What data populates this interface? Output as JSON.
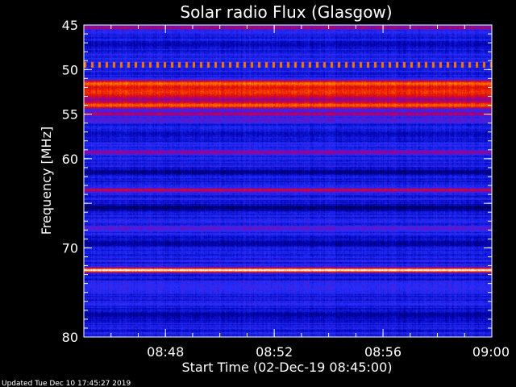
{
  "chart_data": {
    "type": "heatmap",
    "title": "Solar radio Flux (Glasgow)",
    "xlabel": "Start Time (02-Dec-19 08:45:00)",
    "ylabel": "Frequency [MHz]",
    "xlim": [
      "08:45",
      "09:00"
    ],
    "ylim": [
      45,
      80
    ],
    "x_ticks": [
      "08:48",
      "08:52",
      "08:56",
      "09:00"
    ],
    "y_ticks": [
      45,
      50,
      55,
      60,
      65,
      70,
      80
    ],
    "y_tick_labels": [
      "45",
      "50",
      "55",
      "60",
      "",
      "70",
      "80"
    ],
    "colormap": [
      "#000000",
      "#0000b0",
      "#2230ff",
      "#9000a0",
      "#e81000",
      "#ff8000",
      "#ffffff"
    ],
    "background_intensity": 0.28,
    "bands": [
      {
        "freq": 45.3,
        "width": 0.3,
        "intensity": 0.58
      },
      {
        "freq": 47.2,
        "width": 0.6,
        "intensity": 0.18
      },
      {
        "freq": 49.5,
        "width": 0.3,
        "intensity": 0.82,
        "dotted": true
      },
      {
        "freq": 51.6,
        "width": 0.5,
        "intensity": 0.86
      },
      {
        "freq": 52.5,
        "width": 1.4,
        "intensity": 0.72
      },
      {
        "freq": 54.0,
        "width": 0.6,
        "intensity": 0.78
      },
      {
        "freq": 55.0,
        "width": 0.4,
        "intensity": 0.56
      },
      {
        "freq": 55.7,
        "width": 0.4,
        "intensity": 0.42
      },
      {
        "freq": 57.2,
        "width": 0.6,
        "intensity": 0.2
      },
      {
        "freq": 59.3,
        "width": 0.4,
        "intensity": 0.52
      },
      {
        "freq": 61.5,
        "width": 0.5,
        "intensity": 0.12
      },
      {
        "freq": 63.5,
        "width": 0.3,
        "intensity": 0.62
      },
      {
        "freq": 65.5,
        "width": 0.6,
        "intensity": 0.1
      },
      {
        "freq": 67.8,
        "width": 0.4,
        "intensity": 0.42
      },
      {
        "freq": 69.5,
        "width": 0.5,
        "intensity": 0.15
      },
      {
        "freq": 72.5,
        "width": 0.35,
        "intensity": 1.0
      },
      {
        "freq": 74.5,
        "width": 0.8,
        "intensity": 0.35
      },
      {
        "freq": 77.5,
        "width": 0.6,
        "intensity": 0.15
      }
    ]
  },
  "footer": {
    "updated": "Updated Tue Dec 10 17:45:27 2019"
  },
  "colors": {
    "background": "#000000",
    "text": "#ffffff"
  }
}
